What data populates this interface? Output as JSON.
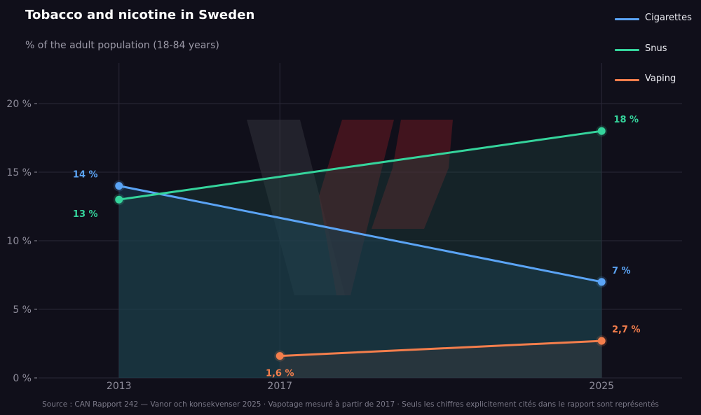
{
  "colors": {
    "background": "#100f1a",
    "grid": "#2a2938",
    "axis_text": "#8e8c9a",
    "cigarettes": "#5ba4f5",
    "snus": "#35d49c",
    "vaping": "#f47e4c",
    "watermark_gray": "#3a3a40",
    "watermark_red": "#5a1a1e"
  },
  "header": {
    "title": "Tobacco and nicotine in Sweden",
    "subtitle": "% of the adult population (18-84 years)"
  },
  "legend": {
    "items": [
      {
        "label": "Cigarettes",
        "series": "cigarettes"
      },
      {
        "label": "Snus",
        "series": "snus"
      },
      {
        "label": "Vaping",
        "series": "vaping"
      }
    ]
  },
  "footer": {
    "text": "Source : CAN Rapport 242 — Vanor och konsekvenser 2025  ·  Vapotage mesuré à partir de 2017  ·  Seuls les chiffres explicitement cités dans le rapport sont représentés"
  },
  "chart_data": {
    "type": "line",
    "title": "Tobacco and nicotine in Sweden",
    "subtitle": "% of the adult population (18-84 years)",
    "xlabel": "",
    "ylabel": "",
    "x_ticks": [
      2013,
      2017,
      2025
    ],
    "x_tick_labels": [
      "2013",
      "2017",
      "2025"
    ],
    "y_ticks": [
      0,
      5,
      10,
      15,
      20
    ],
    "y_tick_labels": [
      "0 %",
      "5 %",
      "10 %",
      "15 %",
      "20 %"
    ],
    "xlim": [
      2011,
      2027
    ],
    "ylim": [
      0,
      22.5
    ],
    "grid": true,
    "legend_position": "top-right",
    "series": [
      {
        "key": "cigarettes",
        "name": "Cigarettes",
        "x": [
          2013,
          2025
        ],
        "values": [
          14,
          7
        ],
        "labels": [
          "14 %",
          "7 %"
        ],
        "area_fill": true
      },
      {
        "key": "snus",
        "name": "Snus",
        "x": [
          2013,
          2025
        ],
        "values": [
          13,
          18
        ],
        "labels": [
          "13 %",
          "18 %"
        ],
        "area_fill": true
      },
      {
        "key": "vaping",
        "name": "Vaping",
        "x": [
          2017,
          2025
        ],
        "values": [
          1.6,
          2.7
        ],
        "labels": [
          "1,6 %",
          "2,7 %"
        ],
        "area_fill": true
      }
    ]
  }
}
